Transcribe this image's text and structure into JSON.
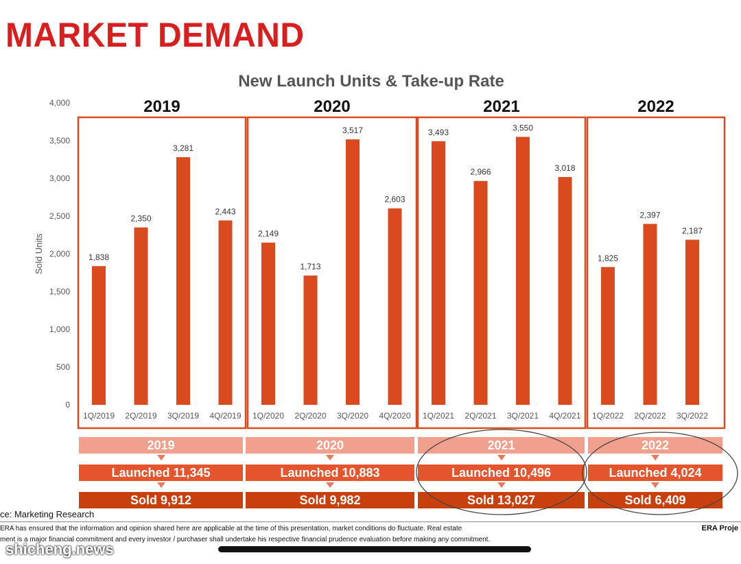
{
  "slide": {
    "title": "MARKET DEMAND",
    "source": "ce: Marketing Research",
    "disclaimer_line1": "ERA has ensured that the information and opinion shared here are applicable at the time of this presentation, market conditions do fluctuate.  Real estate",
    "disclaimer_line2": "ment is a major financial commitment and every investor / purchaser shall undertake his respective financial prudence evaluation before making any commitment.",
    "footer_brand": "ERA Proje",
    "watermark": "shicheng.news"
  },
  "colors": {
    "bar": "#d94a1e",
    "box": "#d94a1e",
    "title": "#d81f1f"
  },
  "chart_data": {
    "type": "bar",
    "title": "New Launch Units & Take-up Rate",
    "ylabel": "Sold Units",
    "ylim": [
      0,
      4000
    ],
    "yticks": [
      "0",
      "500",
      "1,000",
      "1,500",
      "2,000",
      "2,500",
      "3,000",
      "3,500",
      "4,000"
    ],
    "grid": false,
    "groups": [
      {
        "year": "2019",
        "categories": [
          "1Q/2019",
          "2Q/2019",
          "3Q/2019",
          "4Q/2019"
        ],
        "values": [
          1838,
          2350,
          3281,
          2443
        ],
        "labels": [
          "1,838",
          "2,350",
          "3,281",
          "2,443"
        ]
      },
      {
        "year": "2020",
        "categories": [
          "1Q/2020",
          "2Q/2020",
          "3Q/2020",
          "4Q/2020"
        ],
        "values": [
          2149,
          1713,
          3517,
          2603
        ],
        "labels": [
          "2,149",
          "1,713",
          "3,517",
          "2,603"
        ]
      },
      {
        "year": "2021",
        "categories": [
          "1Q/2021",
          "2Q/2021",
          "3Q/2021",
          "4Q/2021"
        ],
        "values": [
          3493,
          2966,
          3550,
          3018
        ],
        "labels": [
          "3,493",
          "2,966",
          "3,550",
          "3,018"
        ]
      },
      {
        "year": "2022",
        "categories": [
          "1Q/2022",
          "2Q/2022",
          "3Q/2022"
        ],
        "values": [
          1825,
          2397,
          2187
        ],
        "labels": [
          "1,825",
          "2,397",
          "2,187"
        ]
      }
    ]
  },
  "summary": [
    {
      "year": "2019",
      "launched": "Launched 11,345",
      "sold": "Sold 9,912"
    },
    {
      "year": "2020",
      "launched": "Launched 10,883",
      "sold": "Sold 9,982"
    },
    {
      "year": "2021",
      "launched": "Launched 10,496",
      "sold": "Sold 13,027"
    },
    {
      "year": "2022",
      "launched": "Launched 4,024",
      "sold": "Sold 6,409"
    }
  ]
}
